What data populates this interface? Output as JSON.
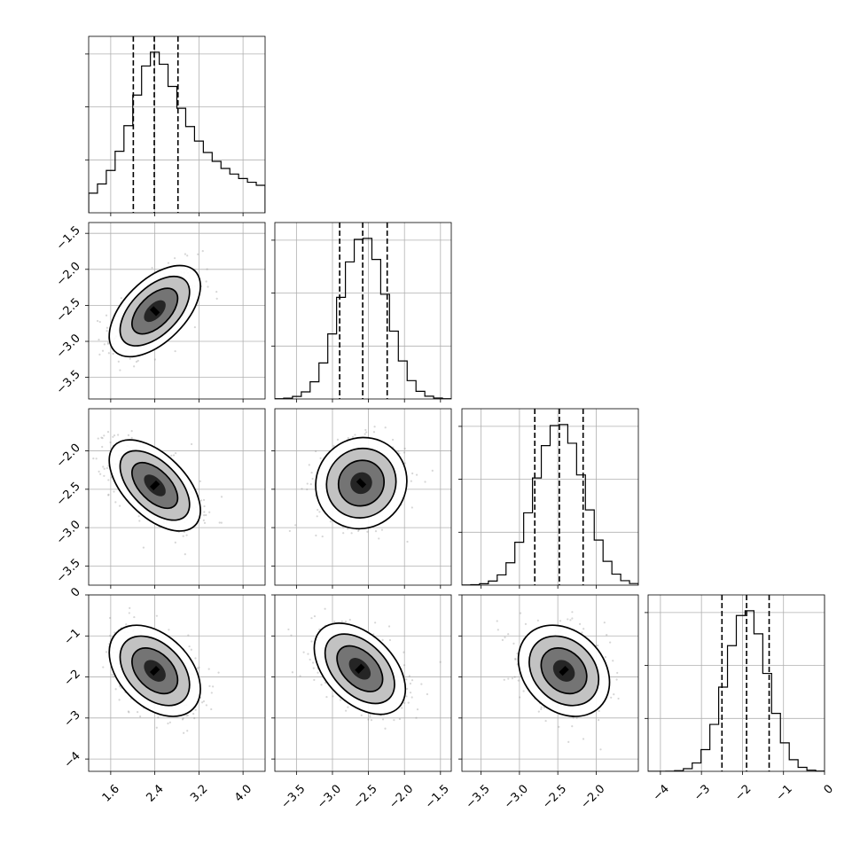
{
  "chart_data": {
    "type": "corner",
    "grid": true,
    "parameters": [
      {
        "range": [
          1.2,
          4.4
        ],
        "ticks": [
          {
            "v": 1.6,
            "label": "1.6"
          },
          {
            "v": 2.4,
            "label": "2.4"
          },
          {
            "v": 3.2,
            "label": "3.2"
          },
          {
            "v": 4.0,
            "label": "4.0"
          }
        ]
      },
      {
        "range": [
          -3.8,
          -1.35
        ],
        "ticks": [
          {
            "v": -3.5,
            "label": "−3.5"
          },
          {
            "v": -3.0,
            "label": "−3.0"
          },
          {
            "v": -2.5,
            "label": "−2.5"
          },
          {
            "v": -2.0,
            "label": "−2.0"
          },
          {
            "v": -1.5,
            "label": "−1.5"
          }
        ]
      },
      {
        "range": [
          -3.75,
          -1.45
        ],
        "ticks": [
          {
            "v": -3.5,
            "label": "−3.5"
          },
          {
            "v": -3.0,
            "label": "−3.0"
          },
          {
            "v": -2.5,
            "label": "−2.5"
          },
          {
            "v": -2.0,
            "label": "−2.0"
          }
        ]
      },
      {
        "range": [
          -4.3,
          0.0
        ],
        "ticks": [
          {
            "v": -4,
            "label": "−4"
          },
          {
            "v": -3,
            "label": "−3"
          },
          {
            "v": -2,
            "label": "−2"
          },
          {
            "v": -1,
            "label": "−1"
          },
          {
            "v": 0,
            "label": "0"
          }
        ]
      }
    ],
    "histograms": [
      {
        "mean": 2.4,
        "sd": 0.35,
        "skew": 0.35,
        "quantiles": [
          2.01,
          2.39,
          2.82
        ],
        "ytick_fracs": [
          0.3,
          0.6,
          0.9
        ]
      },
      {
        "mean": -2.57,
        "sd": 0.32,
        "skew": 0.0,
        "quantiles": [
          -2.9,
          -2.58,
          -2.24
        ],
        "ytick_fracs": [
          0.3,
          0.6,
          0.9
        ]
      },
      {
        "mean": -2.48,
        "sd": 0.32,
        "skew": 0.0,
        "quantiles": [
          -2.8,
          -2.48,
          -2.17
        ],
        "ytick_fracs": [
          0.3,
          0.6,
          0.9
        ]
      },
      {
        "mean": -1.9,
        "sd": 0.5,
        "skew": 0.0,
        "quantiles": [
          -2.5,
          -1.9,
          -1.35
        ],
        "ytick_fracs": [
          0.3,
          0.6,
          0.9
        ]
      }
    ],
    "pairs": [
      {
        "row": 1,
        "col": 0,
        "center": [
          2.4,
          -2.58
        ],
        "rho": 0.55
      },
      {
        "row": 2,
        "col": 0,
        "center": [
          2.4,
          -2.45
        ],
        "rho": -0.55
      },
      {
        "row": 2,
        "col": 1,
        "center": [
          -2.6,
          -2.42
        ],
        "rho": 0.05
      },
      {
        "row": 3,
        "col": 0,
        "center": [
          2.4,
          -1.85
        ],
        "rho": -0.4
      },
      {
        "row": 3,
        "col": 1,
        "center": [
          -2.62,
          -1.8
        ],
        "rho": -0.45
      },
      {
        "row": 3,
        "col": 2,
        "center": [
          -2.42,
          -1.85
        ],
        "rho": -0.25
      }
    ]
  }
}
